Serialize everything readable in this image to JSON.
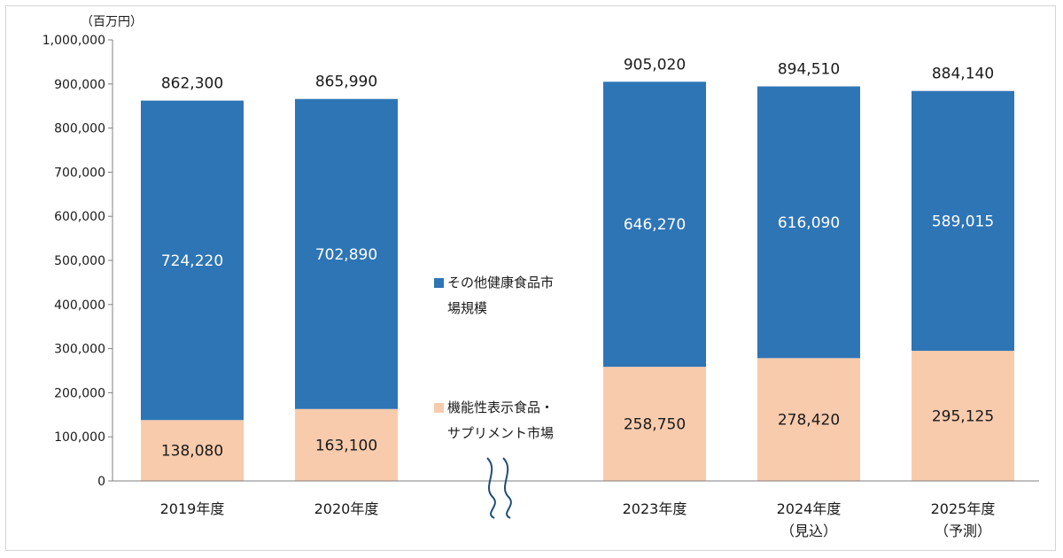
{
  "chart_data": {
    "type": "bar",
    "stacked": true,
    "unit_label": "（百万円）",
    "categories": [
      {
        "line1": "2019年度",
        "line2": ""
      },
      {
        "line1": "2020年度",
        "line2": ""
      },
      {
        "line1": "2023年度",
        "line2": ""
      },
      {
        "line1": "2024年度",
        "line2": "（見込）"
      },
      {
        "line1": "2025年度",
        "line2": "（予測）"
      }
    ],
    "series": [
      {
        "name_lines": [
          "機能性表示食品・",
          "サプリメント市場"
        ],
        "color": "#f8cbad",
        "text_color": "#1a1a1a",
        "values": [
          138080,
          163100,
          258750,
          278420,
          295125
        ],
        "labels": [
          "138,080",
          "163,100",
          "258,750",
          "278,420",
          "295,125"
        ]
      },
      {
        "name_lines": [
          "その他健康食品市",
          "場規模"
        ],
        "color": "#2e75b6",
        "text_color": "#ffffff",
        "values": [
          724220,
          702890,
          646270,
          616090,
          589015
        ],
        "labels": [
          "724,220",
          "702,890",
          "646,270",
          "616,090",
          "589,015"
        ]
      }
    ],
    "totals": [
      862300,
      865990,
      905020,
      894510,
      884140
    ],
    "total_labels": [
      "862,300",
      "865,990",
      "905,020",
      "894,510",
      "884,140"
    ],
    "ylim": [
      0,
      1000000
    ],
    "yticks": [
      0,
      100000,
      200000,
      300000,
      400000,
      500000,
      600000,
      700000,
      800000,
      900000,
      1000000
    ],
    "ytick_labels": [
      "0",
      "100,000",
      "200,000",
      "300,000",
      "400,000",
      "500,000",
      "600,000",
      "700,000",
      "800,000",
      "900,000",
      "1,000,000"
    ],
    "axis_break_between_categories": [
      2020,
      2023
    ],
    "axis_color": "#7f7f7f",
    "break_mark_color": "#1f4e79",
    "grid": false,
    "legend_position": "center"
  }
}
